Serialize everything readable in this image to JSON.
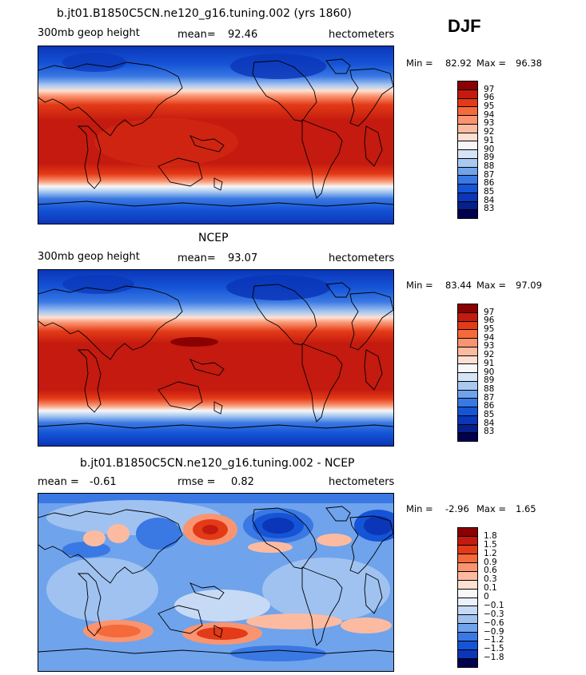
{
  "season": "DJF",
  "panels": [
    {
      "title": "b.jt01.B1850C5CN.ne120_g16.tuning.002 (yrs 1860)",
      "left_label": "300mb geop height",
      "mid_label": "mean=",
      "mid_value": "92.46",
      "units": "hectometers",
      "min_label": "Min =",
      "min_value": "82.92",
      "max_label": "Max =",
      "max_value": "96.38"
    },
    {
      "title": "NCEP",
      "left_label": "300mb geop height",
      "mid_label": "mean=",
      "mid_value": "93.07",
      "units": "hectometers",
      "min_label": "Min =",
      "min_value": "83.44",
      "max_label": "Max =",
      "max_value": "97.09"
    },
    {
      "title": "b.jt01.B1850C5CN.ne120_g16.tuning.002 - NCEP",
      "left_label": "mean =",
      "left_value": "-0.61",
      "mid_label": "rmse =",
      "mid_value": "0.82",
      "units": "hectometers",
      "min_label": "Min =",
      "min_value": "-2.96",
      "max_label": "Max =",
      "max_value": "1.65"
    }
  ],
  "colorbars": {
    "abs": {
      "labels": [
        "97",
        "96",
        "95",
        "94",
        "93",
        "92",
        "91",
        "90",
        "89",
        "88",
        "87",
        "86",
        "85",
        "84",
        "83"
      ],
      "colors": [
        "#8b0000",
        "#c41a0f",
        "#e33a17",
        "#f46a3b",
        "#fa9470",
        "#fcbba1",
        "#fde0d2",
        "#f7f7f7",
        "#d6e4f7",
        "#a9c9f1",
        "#6fa3ec",
        "#3a78e3",
        "#1554d6",
        "#0b36b8",
        "#06208c",
        "#00004f"
      ]
    },
    "diff": {
      "labels": [
        "1.8",
        "1.5",
        "1.2",
        "0.9",
        "0.6",
        "0.3",
        "0.1",
        "0",
        "−0.1",
        "−0.3",
        "−0.6",
        "−0.9",
        "−1.2",
        "−1.5",
        "−1.8"
      ],
      "colors": [
        "#8b0000",
        "#c41a0f",
        "#e33a17",
        "#f46a3b",
        "#fa9470",
        "#fcbba1",
        "#fde0d2",
        "#f7f7f7",
        "#eaf1fb",
        "#c7daf5",
        "#a0c2f0",
        "#6fa3ec",
        "#3a78e3",
        "#1554d6",
        "#0b36b8",
        "#00004f"
      ]
    }
  }
}
